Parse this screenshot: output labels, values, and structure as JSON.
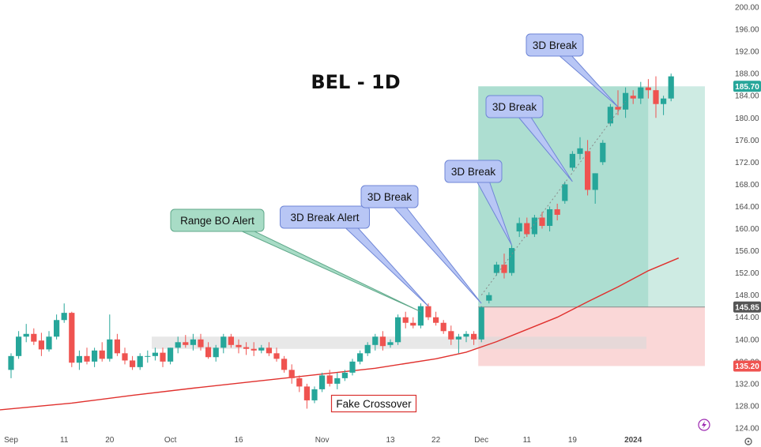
{
  "chart_data": {
    "type": "candlestick",
    "title": "BEL - 1D",
    "ylim": [
      124,
      200
    ],
    "y_ticks": [
      124,
      128,
      132,
      136,
      140,
      144,
      148,
      152,
      156,
      160,
      164,
      168,
      172,
      176,
      180,
      184,
      188,
      192,
      196,
      200
    ],
    "y_tick_labels": [
      "124.00",
      "128.00",
      "132.00",
      "136.00",
      "140.00",
      "144.00",
      "148.00",
      "152.00",
      "156.00",
      "160.00",
      "164.00",
      "168.00",
      "172.00",
      "176.00",
      "180.00",
      "184.00",
      "188.00",
      "192.00",
      "196.00",
      "200.00"
    ],
    "x_labels": [
      {
        "label": "Sep",
        "index": 0
      },
      {
        "label": "11",
        "index": 7
      },
      {
        "label": "20",
        "index": 13
      },
      {
        "label": "Oct",
        "index": 21
      },
      {
        "label": "16",
        "index": 30
      },
      {
        "label": "Nov",
        "index": 41
      },
      {
        "label": "13",
        "index": 50
      },
      {
        "label": "22",
        "index": 56
      },
      {
        "label": "Dec",
        "index": 62
      },
      {
        "label": "11",
        "index": 68
      },
      {
        "label": "19",
        "index": 74
      },
      {
        "label": "2024",
        "index": 82
      }
    ],
    "bull_color": "#26a69a",
    "bear_color": "#ef5350",
    "ma_color": "#e0302d",
    "candles": [
      [
        134.5,
        137.5,
        133.0,
        137.0
      ],
      [
        137.0,
        141.5,
        136.5,
        140.5
      ],
      [
        140.5,
        142.8,
        139.5,
        141.0
      ],
      [
        141.0,
        142.0,
        139.0,
        139.6
      ],
      [
        139.8,
        141.2,
        137.0,
        138.2
      ],
      [
        138.2,
        141.5,
        137.8,
        140.5
      ],
      [
        140.5,
        144.5,
        140.0,
        143.5
      ],
      [
        143.5,
        146.5,
        143.0,
        144.8
      ],
      [
        144.8,
        145.0,
        135.0,
        135.8
      ],
      [
        135.8,
        138.0,
        134.5,
        137.0
      ],
      [
        137.0,
        138.5,
        135.5,
        136.0
      ],
      [
        136.0,
        138.5,
        135.0,
        138.0
      ],
      [
        138.0,
        139.5,
        136.0,
        136.5
      ],
      [
        136.5,
        144.5,
        136.0,
        140.0
      ],
      [
        140.0,
        141.0,
        137.0,
        137.5
      ],
      [
        137.5,
        138.5,
        135.5,
        136.2
      ],
      [
        136.2,
        137.0,
        134.5,
        135.0
      ],
      [
        135.0,
        137.5,
        134.5,
        137.0
      ],
      [
        137.0,
        138.0,
        135.8,
        137.0
      ],
      [
        137.0,
        138.5,
        136.2,
        137.6
      ],
      [
        137.6,
        138.5,
        135.0,
        136.0
      ],
      [
        136.0,
        138.5,
        135.5,
        138.5
      ],
      [
        138.5,
        140.5,
        137.5,
        139.5
      ],
      [
        139.5,
        140.8,
        138.5,
        139.0
      ],
      [
        139.0,
        141.0,
        138.0,
        140.0
      ],
      [
        140.0,
        141.0,
        138.0,
        138.6
      ],
      [
        138.6,
        139.5,
        136.5,
        136.8
      ],
      [
        136.8,
        139.0,
        136.0,
        138.5
      ],
      [
        138.5,
        141.0,
        137.5,
        140.5
      ],
      [
        140.5,
        141.0,
        138.5,
        139.0
      ],
      [
        139.0,
        140.0,
        137.5,
        138.6
      ],
      [
        138.6,
        139.5,
        137.2,
        138.3
      ],
      [
        138.3,
        139.5,
        137.0,
        138.0
      ],
      [
        138.0,
        139.0,
        137.5,
        138.5
      ],
      [
        138.5,
        139.5,
        137.0,
        137.5
      ],
      [
        137.5,
        138.5,
        136.0,
        136.5
      ],
      [
        136.5,
        137.0,
        134.0,
        134.5
      ],
      [
        134.5,
        135.5,
        132.0,
        133.0
      ],
      [
        133.0,
        133.5,
        130.5,
        131.5
      ],
      [
        131.5,
        132.0,
        127.5,
        129.0
      ],
      [
        129.0,
        131.5,
        128.5,
        131.0
      ],
      [
        131.0,
        134.0,
        130.5,
        133.5
      ],
      [
        133.5,
        134.5,
        131.5,
        132.0
      ],
      [
        132.0,
        134.0,
        131.0,
        133.0
      ],
      [
        133.0,
        134.5,
        132.5,
        134.0
      ],
      [
        134.0,
        136.5,
        133.5,
        136.0
      ],
      [
        136.0,
        138.0,
        135.5,
        137.5
      ],
      [
        137.5,
        139.5,
        137.0,
        139.0
      ],
      [
        139.0,
        141.0,
        138.0,
        140.5
      ],
      [
        140.5,
        141.5,
        138.0,
        138.8
      ],
      [
        139.0,
        140.0,
        138.5,
        139.5
      ],
      [
        139.5,
        144.5,
        139.0,
        144.0
      ],
      [
        144.0,
        145.0,
        142.0,
        143.0
      ],
      [
        143.0,
        144.0,
        142.0,
        142.5
      ],
      [
        142.5,
        146.5,
        142.0,
        146.0
      ],
      [
        146.0,
        146.5,
        143.5,
        144.0
      ],
      [
        144.0,
        145.0,
        142.5,
        143.0
      ],
      [
        143.0,
        143.5,
        141.0,
        141.5
      ],
      [
        141.5,
        142.5,
        139.0,
        140.0
      ],
      [
        140.0,
        141.0,
        137.5,
        140.5
      ],
      [
        140.5,
        141.5,
        139.5,
        141.0
      ],
      [
        141.0,
        141.5,
        139.0,
        140.0
      ],
      [
        140.0,
        146.0,
        139.5,
        145.8
      ],
      [
        147.0,
        148.5,
        146.5,
        148.0
      ],
      [
        152.0,
        154.0,
        151.5,
        153.5
      ],
      [
        153.5,
        155.5,
        151.0,
        152.0
      ],
      [
        152.0,
        157.0,
        151.5,
        156.5
      ],
      [
        159.5,
        162.0,
        158.5,
        161.0
      ],
      [
        161.0,
        162.0,
        158.5,
        159.0
      ],
      [
        159.0,
        162.5,
        158.5,
        162.0
      ],
      [
        162.0,
        163.0,
        160.0,
        160.5
      ],
      [
        160.5,
        164.0,
        159.5,
        163.5
      ],
      [
        163.5,
        164.5,
        161.5,
        162.5
      ],
      [
        165.0,
        168.5,
        164.5,
        168.0
      ],
      [
        171.0,
        174.0,
        170.5,
        173.5
      ],
      [
        173.5,
        176.5,
        172.5,
        174.5
      ],
      [
        174.0,
        176.0,
        166.0,
        167.0
      ],
      [
        167.0,
        170.0,
        164.5,
        170.0
      ],
      [
        172.0,
        176.0,
        171.5,
        175.5
      ],
      [
        179.0,
        182.5,
        178.5,
        182.0
      ],
      [
        182.0,
        185.0,
        180.5,
        181.5
      ],
      [
        181.5,
        185.5,
        180.0,
        184.5
      ],
      [
        184.0,
        185.0,
        182.5,
        183.5
      ],
      [
        183.5,
        186.5,
        182.5,
        185.5
      ],
      [
        185.5,
        187.0,
        183.5,
        185.0
      ],
      [
        185.0,
        187.5,
        180.0,
        182.5
      ],
      [
        182.5,
        184.0,
        180.5,
        183.5
      ],
      [
        183.5,
        188.0,
        183.0,
        187.5
      ]
    ],
    "moving_average": [
      [
        0,
        127.3
      ],
      [
        8,
        128.5
      ],
      [
        16,
        129.9
      ],
      [
        24,
        131.2
      ],
      [
        32,
        132.4
      ],
      [
        40,
        133.6
      ],
      [
        48,
        134.8
      ],
      [
        56,
        136.5
      ],
      [
        60,
        137.7
      ],
      [
        64,
        139.6
      ],
      [
        68,
        141.8
      ],
      [
        72,
        144.0
      ],
      [
        76,
        146.8
      ],
      [
        80,
        149.5
      ],
      [
        84,
        152.4
      ],
      [
        88,
        154.7
      ]
    ],
    "range_band": {
      "from_index": 17,
      "to_index": 79,
      "y_low": 138.3,
      "y_high": 140.5
    },
    "profit_zone": {
      "from_index": 62,
      "to_index": 88,
      "y_low": 145.85,
      "y_high": 185.7
    },
    "loss_zone": {
      "from_index": 62,
      "to_index": 88,
      "y_low": 135.2,
      "y_high": 145.85
    },
    "price_badges": [
      {
        "label": "185.70",
        "value": 185.7,
        "color": "#26a69a"
      },
      {
        "label": "145.85",
        "value": 145.85,
        "color": "#555555"
      },
      {
        "label": "135.20",
        "value": 135.2,
        "color": "#ef5350"
      }
    ],
    "annotations": [
      {
        "text": "Range BO Alert",
        "kind": "green",
        "target_index": 54,
        "target_value": 145.0
      },
      {
        "text": "3D Break Alert",
        "kind": "blue",
        "target_index": 55,
        "target_value": 146.0
      },
      {
        "text": "3D Break",
        "kind": "blue",
        "target_index": 62,
        "target_value": 146.5
      },
      {
        "text": "3D Break",
        "kind": "blue",
        "target_index": 66,
        "target_value": 157.0
      },
      {
        "text": "3D Break",
        "kind": "blue",
        "target_index": 74,
        "target_value": 168.5
      },
      {
        "text": "3D Break",
        "kind": "blue",
        "target_index": 80,
        "target_value": 182.0
      },
      {
        "text": "Fake Crossover",
        "kind": "red-box",
        "target_index": 40,
        "target_value": 128.0
      }
    ]
  }
}
